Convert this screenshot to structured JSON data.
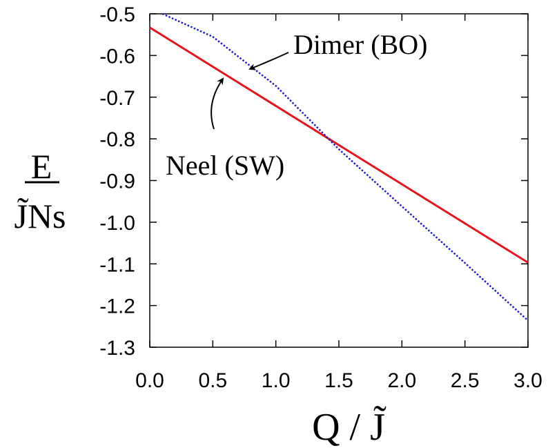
{
  "chart_data": {
    "type": "line",
    "xlabel": "Q / J̃",
    "ylabel": {
      "numerator": "E",
      "denominator": "J̃Ns"
    },
    "xlim": [
      0.0,
      3.0
    ],
    "ylim": [
      -1.3,
      -0.5
    ],
    "x_ticks": [
      "0.0",
      "0.5",
      "1.0",
      "1.5",
      "2.0",
      "2.5",
      "3.0"
    ],
    "y_ticks": [
      "-0.5",
      "-0.6",
      "-0.7",
      "-0.8",
      "-0.9",
      "-1.0",
      "-1.1",
      "-1.2",
      "-1.3"
    ],
    "grid": false,
    "series": [
      {
        "name": "Neel (SW)",
        "color": "#e8141c",
        "style": "solid",
        "x": [
          0.0,
          3.0
        ],
        "y": [
          -0.533,
          -1.097
        ]
      },
      {
        "name": "Dimer (BO)",
        "color": "#1a1ac8",
        "style": "dotted",
        "x": [
          0.1,
          0.5,
          1.0,
          1.5,
          2.0,
          2.5,
          3.0
        ],
        "y": [
          -0.5,
          -0.555,
          -0.673,
          -0.825,
          -0.962,
          -1.098,
          -1.236
        ]
      }
    ],
    "annotations": [
      {
        "text": "Dimer (BO)",
        "target_series": "Dimer (BO)",
        "target_x": 0.75,
        "target_y": -0.645
      },
      {
        "text": "Neel (SW)",
        "target_series": "Neel (SW)",
        "target_x": 0.58,
        "target_y": -0.642
      }
    ]
  }
}
